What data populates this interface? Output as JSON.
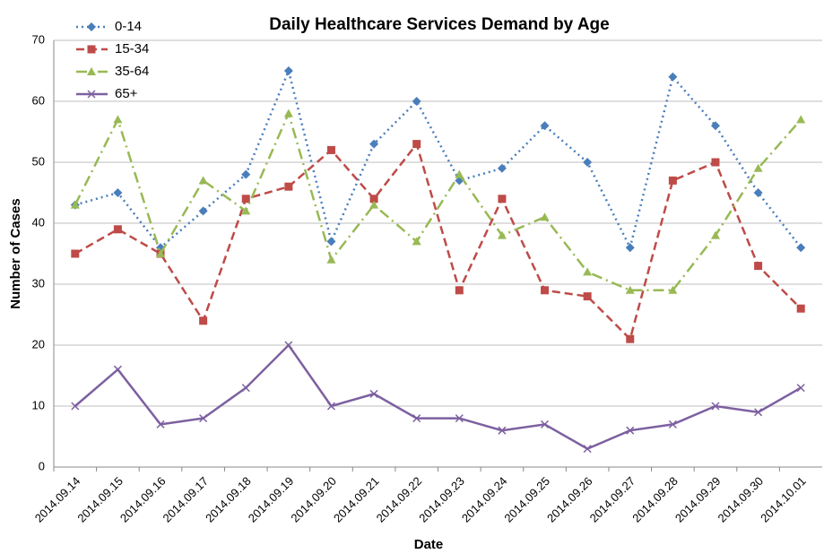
{
  "chart_data": {
    "type": "line",
    "title": "Daily Healthcare Services Demand by Age",
    "x_label": "Date",
    "y_label": "Number of Cases",
    "categories": [
      "2014.09.14",
      "2014.09.15",
      "2014.09.16",
      "2014.09.17",
      "2014.09.18",
      "2014.09.19",
      "2014.09.20",
      "2014.09.21",
      "2014.09.22",
      "2014.09.23",
      "2014.09.24",
      "2014.09.25",
      "2014.09.26",
      "2014.09.27",
      "2014.09.28",
      "2014.09.29",
      "2014.09.30",
      "2014.10.01"
    ],
    "series": [
      {
        "name": "0-14",
        "color": "#4a7ebb",
        "values": [
          43,
          45,
          36,
          42,
          48,
          65,
          37,
          53,
          60,
          47,
          49,
          56,
          50,
          36,
          64,
          56,
          45,
          36
        ]
      },
      {
        "name": "15-34",
        "color": "#be4b48",
        "values": [
          35,
          39,
          35,
          24,
          44,
          46,
          52,
          44,
          53,
          29,
          44,
          29,
          28,
          21,
          47,
          50,
          33,
          26
        ]
      },
      {
        "name": "35-64",
        "color": "#98b954",
        "values": [
          43,
          57,
          35,
          47,
          42,
          58,
          34,
          43,
          37,
          48,
          38,
          41,
          32,
          29,
          29,
          38,
          49,
          57
        ]
      },
      {
        "name": "65+",
        "color": "#7d60a0",
        "values": [
          10,
          16,
          7,
          8,
          13,
          20,
          10,
          12,
          8,
          8,
          6,
          7,
          3,
          6,
          7,
          10,
          9,
          13
        ]
      }
    ],
    "ylim": [
      0,
      70
    ],
    "yticks": [
      0,
      10,
      20,
      30,
      40,
      50,
      60,
      70
    ],
    "grid": true,
    "legend": "top-left"
  }
}
